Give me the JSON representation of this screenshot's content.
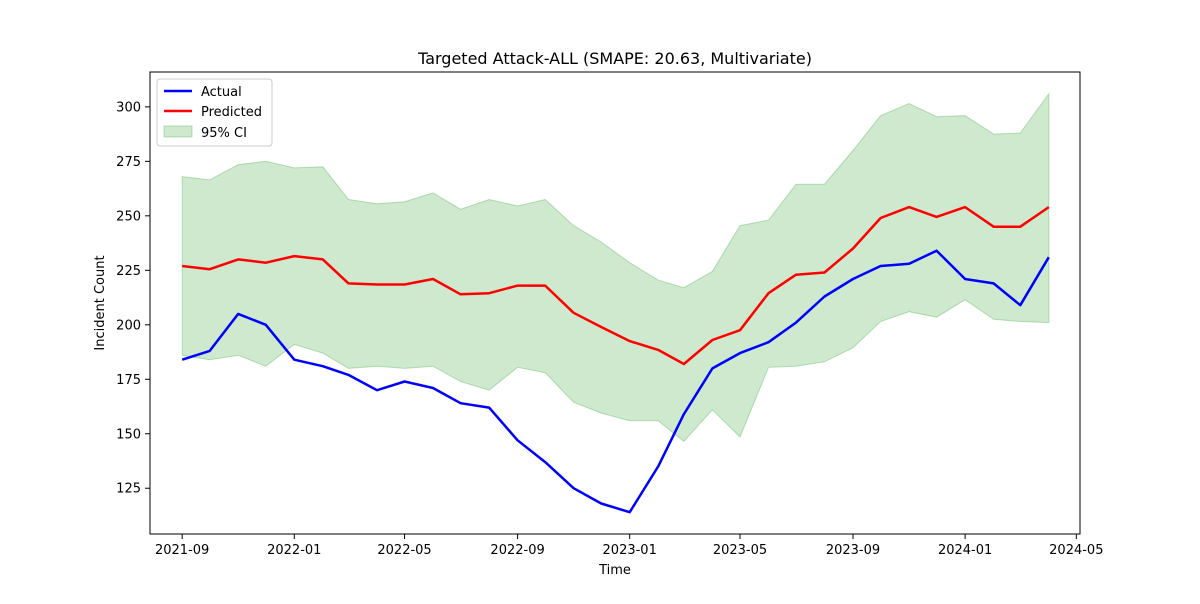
{
  "chart_data": {
    "type": "line",
    "title": "Targeted Attack-ALL (SMAPE: 20.63, Multivariate)",
    "xlabel": "Time",
    "ylabel": "Incident Count",
    "xlim": [
      "2021-07-28",
      "2024-05-05"
    ],
    "ylim": [
      104,
      316
    ],
    "x_ticks": [
      "2021-09",
      "2022-01",
      "2022-05",
      "2022-09",
      "2023-01",
      "2023-05",
      "2023-09",
      "2024-01",
      "2024-05"
    ],
    "y_ticks": [
      125,
      150,
      175,
      200,
      225,
      250,
      275,
      300
    ],
    "grid": false,
    "legend_position": "top-left",
    "x": [
      "2021-09",
      "2021-10",
      "2021-11",
      "2021-12",
      "2022-01",
      "2022-02",
      "2022-03",
      "2022-04",
      "2022-05",
      "2022-06",
      "2022-07",
      "2022-08",
      "2022-09",
      "2022-10",
      "2022-11",
      "2022-12",
      "2023-01",
      "2023-02",
      "2023-03",
      "2023-04",
      "2023-05",
      "2023-06",
      "2023-07",
      "2023-08",
      "2023-09",
      "2023-10",
      "2023-11",
      "2023-12",
      "2024-01",
      "2024-02",
      "2024-03",
      "2024-04"
    ],
    "series": [
      {
        "name": "Actual",
        "color": "#0000ff",
        "values": [
          184,
          188,
          205,
          200,
          184,
          181,
          177,
          170,
          174,
          171,
          164,
          162,
          147,
          137,
          125,
          118,
          114,
          135,
          159,
          180,
          187,
          192,
          201,
          213,
          221,
          227,
          228,
          234,
          221,
          219,
          209,
          231
        ]
      },
      {
        "name": "Predicted",
        "color": "#ff0000",
        "values": [
          227,
          225.5,
          230,
          228.5,
          231.5,
          230,
          219,
          218.5,
          218.5,
          221,
          214,
          214.5,
          218,
          218,
          205.5,
          199,
          192.5,
          188.5,
          182,
          193,
          197.5,
          214.5,
          223,
          224,
          235,
          249,
          254,
          249.5,
          254,
          245,
          245,
          254
        ]
      }
    ],
    "band": {
      "name": "95% CI",
      "color": "#2ca02c",
      "opacity": 0.23,
      "lower": [
        186,
        184,
        186,
        181,
        191,
        187,
        180,
        181,
        180,
        181,
        174,
        170,
        180.5,
        178,
        164.5,
        159.5,
        156,
        156,
        146.5,
        161,
        148.5,
        180.5,
        181,
        183,
        189.5,
        201.5,
        206,
        203.5,
        211.5,
        202.5,
        201.5,
        201
      ],
      "upper": [
        268,
        266.5,
        273.5,
        275,
        272,
        272.5,
        257.5,
        255.5,
        256.5,
        260.5,
        253,
        257.5,
        254.5,
        257.5,
        245.5,
        238,
        228.5,
        220.5,
        217,
        224.5,
        245.5,
        248,
        264.5,
        264.5,
        280,
        296,
        301.5,
        295.5,
        296,
        287.5,
        288,
        306
      ]
    }
  }
}
